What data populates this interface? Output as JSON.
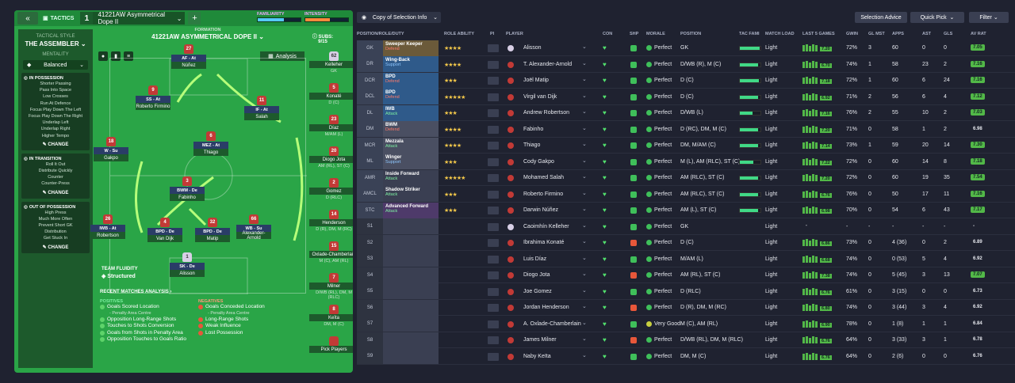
{
  "topbar": {
    "tactics": "TACTICS",
    "slot": "1",
    "tactic_name": "41221AW Asymmetrical Dope II",
    "familiarity": "FAMILIARITY",
    "intensity": "INTENSITY",
    "familiarity_level": 0.62,
    "intensity_level": 0.58
  },
  "sidebar": {
    "tactical_style": "TACTICAL STYLE",
    "style_name": "THE ASSEMBLER",
    "mentality_label": "MENTALITY",
    "mentality": "Balanced",
    "in_possession": {
      "title": "IN POSSESSION",
      "items": [
        "Shorter Passing",
        "Pass Into Space",
        "Low Crosses",
        "Run At Defence",
        "Focus Play Down The Left",
        "Focus Play Down The Right",
        "Underlap Left",
        "Underlap Right",
        "Higher Tempo"
      ],
      "change": "CHANGE"
    },
    "in_transition": {
      "title": "IN TRANSITION",
      "items": [
        "Roll It Out",
        "Distribute Quickly",
        "Counter",
        "Counter-Press"
      ],
      "change": "CHANGE"
    },
    "out_of_possession": {
      "title": "OUT OF POSSESSION",
      "items": [
        "High Press",
        "Much More Often",
        "Prevent Short GK",
        "Distribution",
        "Get Stuck In"
      ],
      "change": "CHANGE"
    }
  },
  "formation": {
    "label": "FORMATION",
    "name": "41221AW ASYMMETRICAL DOPE II",
    "subs_label": "SUBS:",
    "subs_count": "9/15",
    "analysis": "Analysis"
  },
  "pitch_players": [
    {
      "num": "27",
      "role": "AF - At",
      "name": "Núñez"
    },
    {
      "num": "9",
      "role": "SS - At",
      "name": "Roberto Firmino"
    },
    {
      "num": "11",
      "role": "IF - At",
      "name": "Salah"
    },
    {
      "num": "18",
      "role": "W - Su",
      "name": "Gakpo"
    },
    {
      "num": "6",
      "role": "MEZ - At",
      "name": "Thiago"
    },
    {
      "num": "3",
      "role": "BWM - De",
      "name": "Fabinho"
    },
    {
      "num": "26",
      "role": "IWB - At",
      "name": "Robertson"
    },
    {
      "num": "4",
      "role": "BPD - De",
      "name": "Van Dijk"
    },
    {
      "num": "32",
      "role": "BPD - De",
      "name": "Matip"
    },
    {
      "num": "66",
      "role": "WB - Su",
      "name": "Alexander-Arnold"
    },
    {
      "num": "1",
      "role": "SK - De",
      "name": "Alisson"
    }
  ],
  "subs": [
    {
      "num": "62",
      "name": "Kelleher",
      "pos": "GK"
    },
    {
      "num": "5",
      "name": "Konaté",
      "pos": "D (C)"
    },
    {
      "num": "23",
      "name": "Díaz",
      "pos": "M/AM (L)"
    },
    {
      "num": "20",
      "name": "Diogo Jota",
      "pos": "AM (RL), ST (C)"
    },
    {
      "num": "2",
      "name": "Gomez",
      "pos": "D (RLC)"
    },
    {
      "num": "14",
      "name": "Henderson",
      "pos": "D (R), DM, M (RC)"
    },
    {
      "num": "15",
      "name": "Oxlade-Chamberlain",
      "pos": "M (C), AM (RL)"
    },
    {
      "num": "7",
      "name": "Milner",
      "pos": "D/WB (RL), DM, M (RLC)"
    },
    {
      "num": "8",
      "name": "Keïta",
      "pos": "DM, M (C)"
    },
    {
      "num": "",
      "name": "Pick Players",
      "pos": ""
    }
  ],
  "fluidity": {
    "label": "TEAM FLUIDITY",
    "value": "Structured"
  },
  "analysis_panel": {
    "title": "RECENT MATCHES ANALYSIS ›",
    "positives_label": "POSITIVES",
    "negatives_label": "NEGATIVES",
    "positives": [
      {
        "t": "Goals Scored Location",
        "s": "- Penalty Area Centre"
      },
      {
        "t": "Opposition Long-Range Shots",
        "s": ""
      },
      {
        "t": "Touches to Shots Conversion",
        "s": ""
      },
      {
        "t": "Goals from Shots in Penalty Area",
        "s": ""
      },
      {
        "t": "Opposition Touches to Goals Ratio",
        "s": ""
      }
    ],
    "negatives": [
      {
        "t": "Goals Conceded Location",
        "s": "- Penalty Area Centre"
      },
      {
        "t": "Long-Range Shots",
        "s": ""
      },
      {
        "t": "Weak Influence",
        "s": ""
      },
      {
        "t": "Lost Possession",
        "s": ""
      }
    ]
  },
  "right_top": {
    "copy": "Copy of Selection Info",
    "selection_advice": "Selection Advice",
    "quick_pick": "Quick Pick",
    "filter": "Filter"
  },
  "headers": [
    "POSITION/ROLE/DUTY",
    "ROLE ABILITY",
    "PI",
    "PLAYER",
    "CON",
    "SHP",
    "MORALE",
    "POSITION",
    "TAC FAMI",
    "MATCH LOAD",
    "LAST 5 GAMES",
    "GWIN",
    "GL MST",
    "APPS",
    "AST",
    "GLS",
    "AV RAT"
  ],
  "rows": [
    {
      "pos": "GK",
      "role": "Sweeper Keeper",
      "duty": "Defend",
      "stars": "★★★★",
      "name": "Alisson",
      "morale": "Perfect",
      "position": "GK",
      "load": "Light",
      "last": "7.20",
      "gwin": "72%",
      "glmst": "3",
      "apps": "60",
      "ast": "0",
      "gls": "0",
      "avr": "7.05",
      "c": "#6b5a3a",
      "tf": 0.95
    },
    {
      "pos": "DR",
      "role": "Wing-Back",
      "duty": "Support",
      "stars": "★★★★",
      "name": "T. Alexander-Arnold",
      "morale": "Perfect",
      "position": "D/WB (R), M (C)",
      "load": "Light",
      "last": "6.70",
      "gwin": "74%",
      "glmst": "1",
      "apps": "58",
      "ast": "23",
      "gls": "2",
      "avr": "7.16",
      "c": "#2f5a8a",
      "tf": 0.9
    },
    {
      "pos": "DCR",
      "role": "BPD",
      "duty": "Defend",
      "stars": "★★★",
      "name": "Joël Matip",
      "morale": "Perfect",
      "position": "D (C)",
      "load": "Light",
      "last": "7.18",
      "gwin": "72%",
      "glmst": "1",
      "apps": "60",
      "ast": "6",
      "gls": "24",
      "avr": "7.16",
      "c": "#2f5a8a",
      "tf": 0.92
    },
    {
      "pos": "DCL",
      "role": "BPD",
      "duty": "Defend",
      "stars": "★★★★★",
      "name": "Virgil van Dijk",
      "morale": "Perfect",
      "position": "D (C)",
      "load": "Light",
      "last": "6.92",
      "gwin": "71%",
      "glmst": "2",
      "apps": "56",
      "ast": "6",
      "gls": "4",
      "avr": "7.12",
      "c": "#2f5a8a",
      "tf": 0.9
    },
    {
      "pos": "DL",
      "role": "IWB",
      "duty": "Attack",
      "stars": "★★★",
      "name": "Andrew Robertson",
      "morale": "Perfect",
      "position": "D/WB (L)",
      "load": "Light",
      "last": "7.16",
      "gwin": "76%",
      "glmst": "2",
      "apps": "55",
      "ast": "10",
      "gls": "2",
      "avr": "7.03",
      "c": "#2f5a8a",
      "tf": 0.6
    },
    {
      "pos": "DM",
      "role": "BWM",
      "duty": "Defend",
      "stars": "★★★★",
      "name": "Fabinho",
      "morale": "Perfect",
      "position": "D (RC), DM, M (C)",
      "load": "Light",
      "last": "7.20",
      "gwin": "71%",
      "glmst": "0",
      "apps": "58",
      "ast": "1",
      "gls": "2",
      "avr": "6.98",
      "c": "#4a4f62",
      "tf": 0.9
    },
    {
      "pos": "MCR",
      "role": "Mezzala",
      "duty": "Attack",
      "stars": "★★★★",
      "name": "Thiago",
      "morale": "Perfect",
      "position": "DM, M/AM (C)",
      "load": "Light",
      "last": "7.14",
      "gwin": "73%",
      "glmst": "1",
      "apps": "59",
      "ast": "20",
      "gls": "14",
      "avr": "7.30",
      "c": "#4a4f62",
      "tf": 0.88
    },
    {
      "pos": "ML",
      "role": "Winger",
      "duty": "Support",
      "stars": "★★★",
      "name": "Cody Gakpo",
      "morale": "Perfect",
      "position": "M (L), AM (RLC), ST (C)",
      "load": "Light",
      "last": "7.22",
      "gwin": "72%",
      "glmst": "0",
      "apps": "60",
      "ast": "14",
      "gls": "8",
      "avr": "7.18",
      "c": "#4a4f62",
      "tf": 0.65
    },
    {
      "pos": "AMR",
      "role": "Inside Forward",
      "duty": "Attack",
      "stars": "★★★★★",
      "name": "Mohamed Salah",
      "morale": "Perfect",
      "position": "AM (RLC), ST (C)",
      "load": "Light",
      "last": "7.20",
      "gwin": "72%",
      "glmst": "0",
      "apps": "60",
      "ast": "19",
      "gls": "35",
      "avr": "7.54",
      "c": "#3a3f52",
      "tf": 0.9
    },
    {
      "pos": "AMCL",
      "role": "Shadow Striker",
      "duty": "Attack",
      "stars": "★★★",
      "name": "Roberto Firmino",
      "morale": "Perfect",
      "position": "AM (RLC), ST (C)",
      "load": "Light",
      "last": "6.76",
      "gwin": "76%",
      "glmst": "0",
      "apps": "50",
      "ast": "17",
      "gls": "11",
      "avr": "7.16",
      "c": "#3a3f52",
      "tf": 0.9
    },
    {
      "pos": "STC",
      "role": "Advanced Forward",
      "duty": "Attack",
      "stars": "★★★",
      "name": "Darwin Núñez",
      "morale": "Perfect",
      "position": "AM (L), ST (C)",
      "load": "Light",
      "last": "6.98",
      "gwin": "70%",
      "glmst": "0",
      "apps": "54",
      "ast": "6",
      "gls": "43",
      "avr": "7.17",
      "c": "#4e3a6a",
      "tf": 0.9
    },
    {
      "pos": "S1",
      "role": "",
      "duty": "",
      "stars": "",
      "name": "Caoimhín Kelleher",
      "morale": "Perfect",
      "position": "GK",
      "load": "Light",
      "last": "-",
      "gwin": "-",
      "glmst": "-",
      "apps": "-",
      "ast": "-",
      "gls": "-",
      "avr": "-",
      "c": "",
      "tf": 0
    },
    {
      "pos": "S2",
      "role": "",
      "duty": "",
      "stars": "",
      "name": "Ibrahima Konaté",
      "morale": "Perfect",
      "position": "D (C)",
      "load": "Light",
      "last": "6.86",
      "gwin": "73%",
      "glmst": "0",
      "apps": "4 (36)",
      "ast": "0",
      "gls": "2",
      "avr": "6.89",
      "c": "",
      "tf": 0
    },
    {
      "pos": "S3",
      "role": "",
      "duty": "",
      "stars": "",
      "name": "Luis Díaz",
      "morale": "Perfect",
      "position": "M/AM (L)",
      "load": "Light",
      "last": "6.68",
      "gwin": "74%",
      "glmst": "0",
      "apps": "0 (53)",
      "ast": "5",
      "gls": "4",
      "avr": "6.92",
      "c": "",
      "tf": 0
    },
    {
      "pos": "S4",
      "role": "",
      "duty": "",
      "stars": "",
      "name": "Diogo Jota",
      "morale": "Perfect",
      "position": "AM (RL), ST (C)",
      "load": "Light",
      "last": "7.38",
      "gwin": "74%",
      "glmst": "0",
      "apps": "5 (45)",
      "ast": "3",
      "gls": "13",
      "avr": "7.07",
      "c": "",
      "tf": 0
    },
    {
      "pos": "S5",
      "role": "",
      "duty": "",
      "stars": "",
      "name": "Joe Gomez",
      "morale": "Perfect",
      "position": "D (RLC)",
      "load": "Light",
      "last": "6.76",
      "gwin": "61%",
      "glmst": "0",
      "apps": "3 (15)",
      "ast": "0",
      "gls": "0",
      "avr": "6.73",
      "c": "",
      "tf": 0
    },
    {
      "pos": "S6",
      "role": "",
      "duty": "",
      "stars": "",
      "name": "Jordan Henderson",
      "morale": "Perfect",
      "position": "D (R), DM, M (RC)",
      "load": "Light",
      "last": "6.80",
      "gwin": "74%",
      "glmst": "0",
      "apps": "3 (44)",
      "ast": "3",
      "gls": "4",
      "avr": "6.92",
      "c": "",
      "tf": 0
    },
    {
      "pos": "S7",
      "role": "",
      "duty": "",
      "stars": "",
      "name": "A. Oxlade-Chamberlain",
      "morale": "Very Good",
      "position": "M (C), AM (RL)",
      "load": "Light",
      "last": "6.90",
      "gwin": "78%",
      "glmst": "0",
      "apps": "1 (8)",
      "ast": "1",
      "gls": "1",
      "avr": "6.84",
      "c": "",
      "tf": 0
    },
    {
      "pos": "S8",
      "role": "",
      "duty": "",
      "stars": "",
      "name": "James Milner",
      "morale": "Perfect",
      "position": "D/WB (RL), DM, M (RLC)",
      "load": "Light",
      "last": "6.76",
      "gwin": "64%",
      "glmst": "0",
      "apps": "3 (33)",
      "ast": "3",
      "gls": "1",
      "avr": "6.78",
      "c": "",
      "tf": 0
    },
    {
      "pos": "S9",
      "role": "",
      "duty": "",
      "stars": "",
      "name": "Naby Keïta",
      "morale": "Perfect",
      "position": "DM, M (C)",
      "load": "Light",
      "last": "6.76",
      "gwin": "64%",
      "glmst": "0",
      "apps": "2 (6)",
      "ast": "0",
      "gls": "0",
      "avr": "6.76",
      "c": "",
      "tf": 0
    }
  ]
}
